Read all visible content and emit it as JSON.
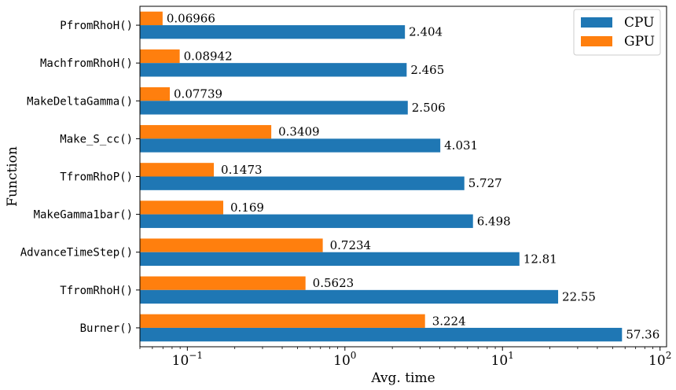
{
  "chart_data": {
    "type": "bar",
    "orientation": "horizontal",
    "xscale": "log",
    "xlim": [
      0.05,
      110
    ],
    "xlabel": "Avg. time",
    "ylabel": "Function",
    "xticks": [
      {
        "value": 0.1,
        "base": "10",
        "exp": "−1"
      },
      {
        "value": 1,
        "base": "10",
        "exp": "0"
      },
      {
        "value": 10,
        "base": "10",
        "exp": "1"
      },
      {
        "value": 100,
        "base": "10",
        "exp": "2"
      }
    ],
    "categories": [
      "PfromRhoH()",
      "MachfromRhoH()",
      "MakeDeltaGamma()",
      "Make_S_cc()",
      "TfromRhoP()",
      "MakeGamma1bar()",
      "AdvanceTimeStep()",
      "TfromRhoH()",
      "Burner()"
    ],
    "series": [
      {
        "name": "CPU",
        "color": "#1f77b4",
        "values": [
          2.404,
          2.465,
          2.506,
          4.031,
          5.727,
          6.498,
          12.81,
          22.55,
          57.36
        ],
        "labels": [
          "2.404",
          "2.465",
          "2.506",
          "4.031",
          "5.727",
          "6.498",
          "12.81",
          "22.55",
          "57.36"
        ]
      },
      {
        "name": "GPU",
        "color": "#ff7f0e",
        "values": [
          0.06966,
          0.08942,
          0.07739,
          0.3409,
          0.1473,
          0.169,
          0.7234,
          0.5623,
          3.224
        ],
        "labels": [
          "0.06966",
          "0.08942",
          "0.07739",
          "0.3409",
          "0.1473",
          "0.169",
          "0.7234",
          "0.5623",
          "3.224"
        ]
      }
    ],
    "legend": {
      "position": "top-right",
      "entries": [
        "CPU",
        "GPU"
      ]
    },
    "grid": false
  }
}
